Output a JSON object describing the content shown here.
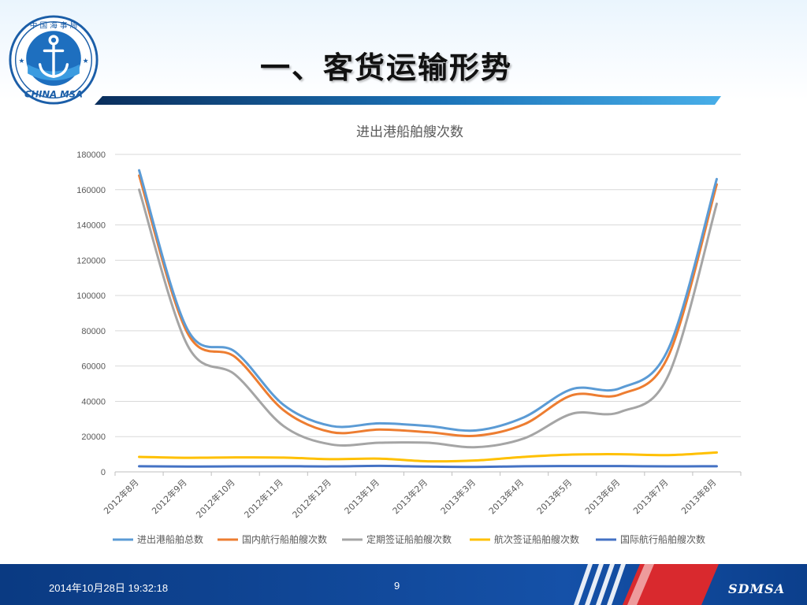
{
  "slide": {
    "title": "一、客货运输形势",
    "logo": {
      "top_text": "中 国 海 事 局",
      "bottom_text": "CHINA MSA",
      "icon": "anchor-icon"
    }
  },
  "footer": {
    "date": "2014年10月28日  19:32:18",
    "page": "9",
    "brand": "SDMSA"
  },
  "colors": {
    "header_accent": "#1f8ac9",
    "footer_blue": "#0b3f8c",
    "footer_red": "#d9292e"
  },
  "chart_data": {
    "type": "line",
    "title": "进出港船舶艘次数",
    "xlabel": "",
    "ylabel": "",
    "ylim": [
      0,
      180000
    ],
    "yticks": [
      0,
      20000,
      40000,
      60000,
      80000,
      100000,
      120000,
      140000,
      160000,
      180000
    ],
    "grid": true,
    "legend_position": "bottom",
    "categories": [
      "2012年8月",
      "2012年9月",
      "2012年10月",
      "2012年11月",
      "2012年12月",
      "2013年1月",
      "2013年2月",
      "2013年3月",
      "2013年4月",
      "2013年5月",
      "2013年6月",
      "2013年7月",
      "2013年8月"
    ],
    "series": [
      {
        "name": "进出港船舶总数",
        "color": "#5b9bd5",
        "values": [
          171000,
          81000,
          68000,
          38000,
          26000,
          27500,
          26000,
          23500,
          31000,
          47000,
          47500,
          70000,
          166000
        ]
      },
      {
        "name": "国内航行船舶艘次数",
        "color": "#ed7d31",
        "values": [
          168000,
          79000,
          65000,
          35000,
          22500,
          24000,
          22500,
          20500,
          27000,
          43500,
          44000,
          66000,
          163000
        ]
      },
      {
        "name": "定期签证船舶艘次数",
        "color": "#a5a5a5",
        "values": [
          160000,
          72000,
          55000,
          26000,
          15500,
          16500,
          16500,
          14000,
          19000,
          33000,
          34000,
          55000,
          152000
        ]
      },
      {
        "name": "航次签证船舶艘次数",
        "color": "#ffc000",
        "values": [
          8500,
          8000,
          8200,
          8100,
          7200,
          7500,
          6000,
          6500,
          8500,
          9800,
          10000,
          9500,
          11000
        ]
      },
      {
        "name": "国际航行船舶艘次数",
        "color": "#4472c4",
        "values": [
          3200,
          3000,
          3100,
          3200,
          3100,
          3400,
          3000,
          2800,
          3200,
          3300,
          3300,
          3100,
          3200
        ]
      }
    ]
  }
}
